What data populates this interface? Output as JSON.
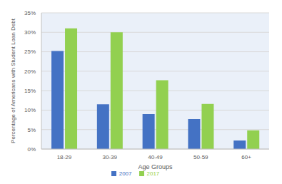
{
  "chart_data": {
    "type": "bar",
    "categories": [
      "18-29",
      "30-39",
      "40-49",
      "50-59",
      "60+"
    ],
    "series": [
      {
        "name": "2007",
        "color": "#4472c4",
        "values": [
          25.2,
          11.5,
          9.0,
          7.7,
          2.2
        ]
      },
      {
        "name": "2017",
        "color": "#92d050",
        "values": [
          31.0,
          30.0,
          17.7,
          11.6,
          4.8
        ]
      }
    ],
    "y_label": "Percentage of Americans with Student Loan Debt",
    "x_label": "Age Groups",
    "ylim": [
      0,
      35
    ],
    "yticks": [
      {
        "value": 0,
        "label": "0%"
      },
      {
        "value": 5,
        "label": "5%"
      },
      {
        "value": 10,
        "label": "10%"
      },
      {
        "value": 15,
        "label": "15%"
      },
      {
        "value": 20,
        "label": "20%"
      },
      {
        "value": 25,
        "label": "25%"
      },
      {
        "value": 30,
        "label": "30%"
      },
      {
        "value": 35,
        "label": "35%"
      }
    ],
    "grid": true,
    "legend": "bottom"
  }
}
